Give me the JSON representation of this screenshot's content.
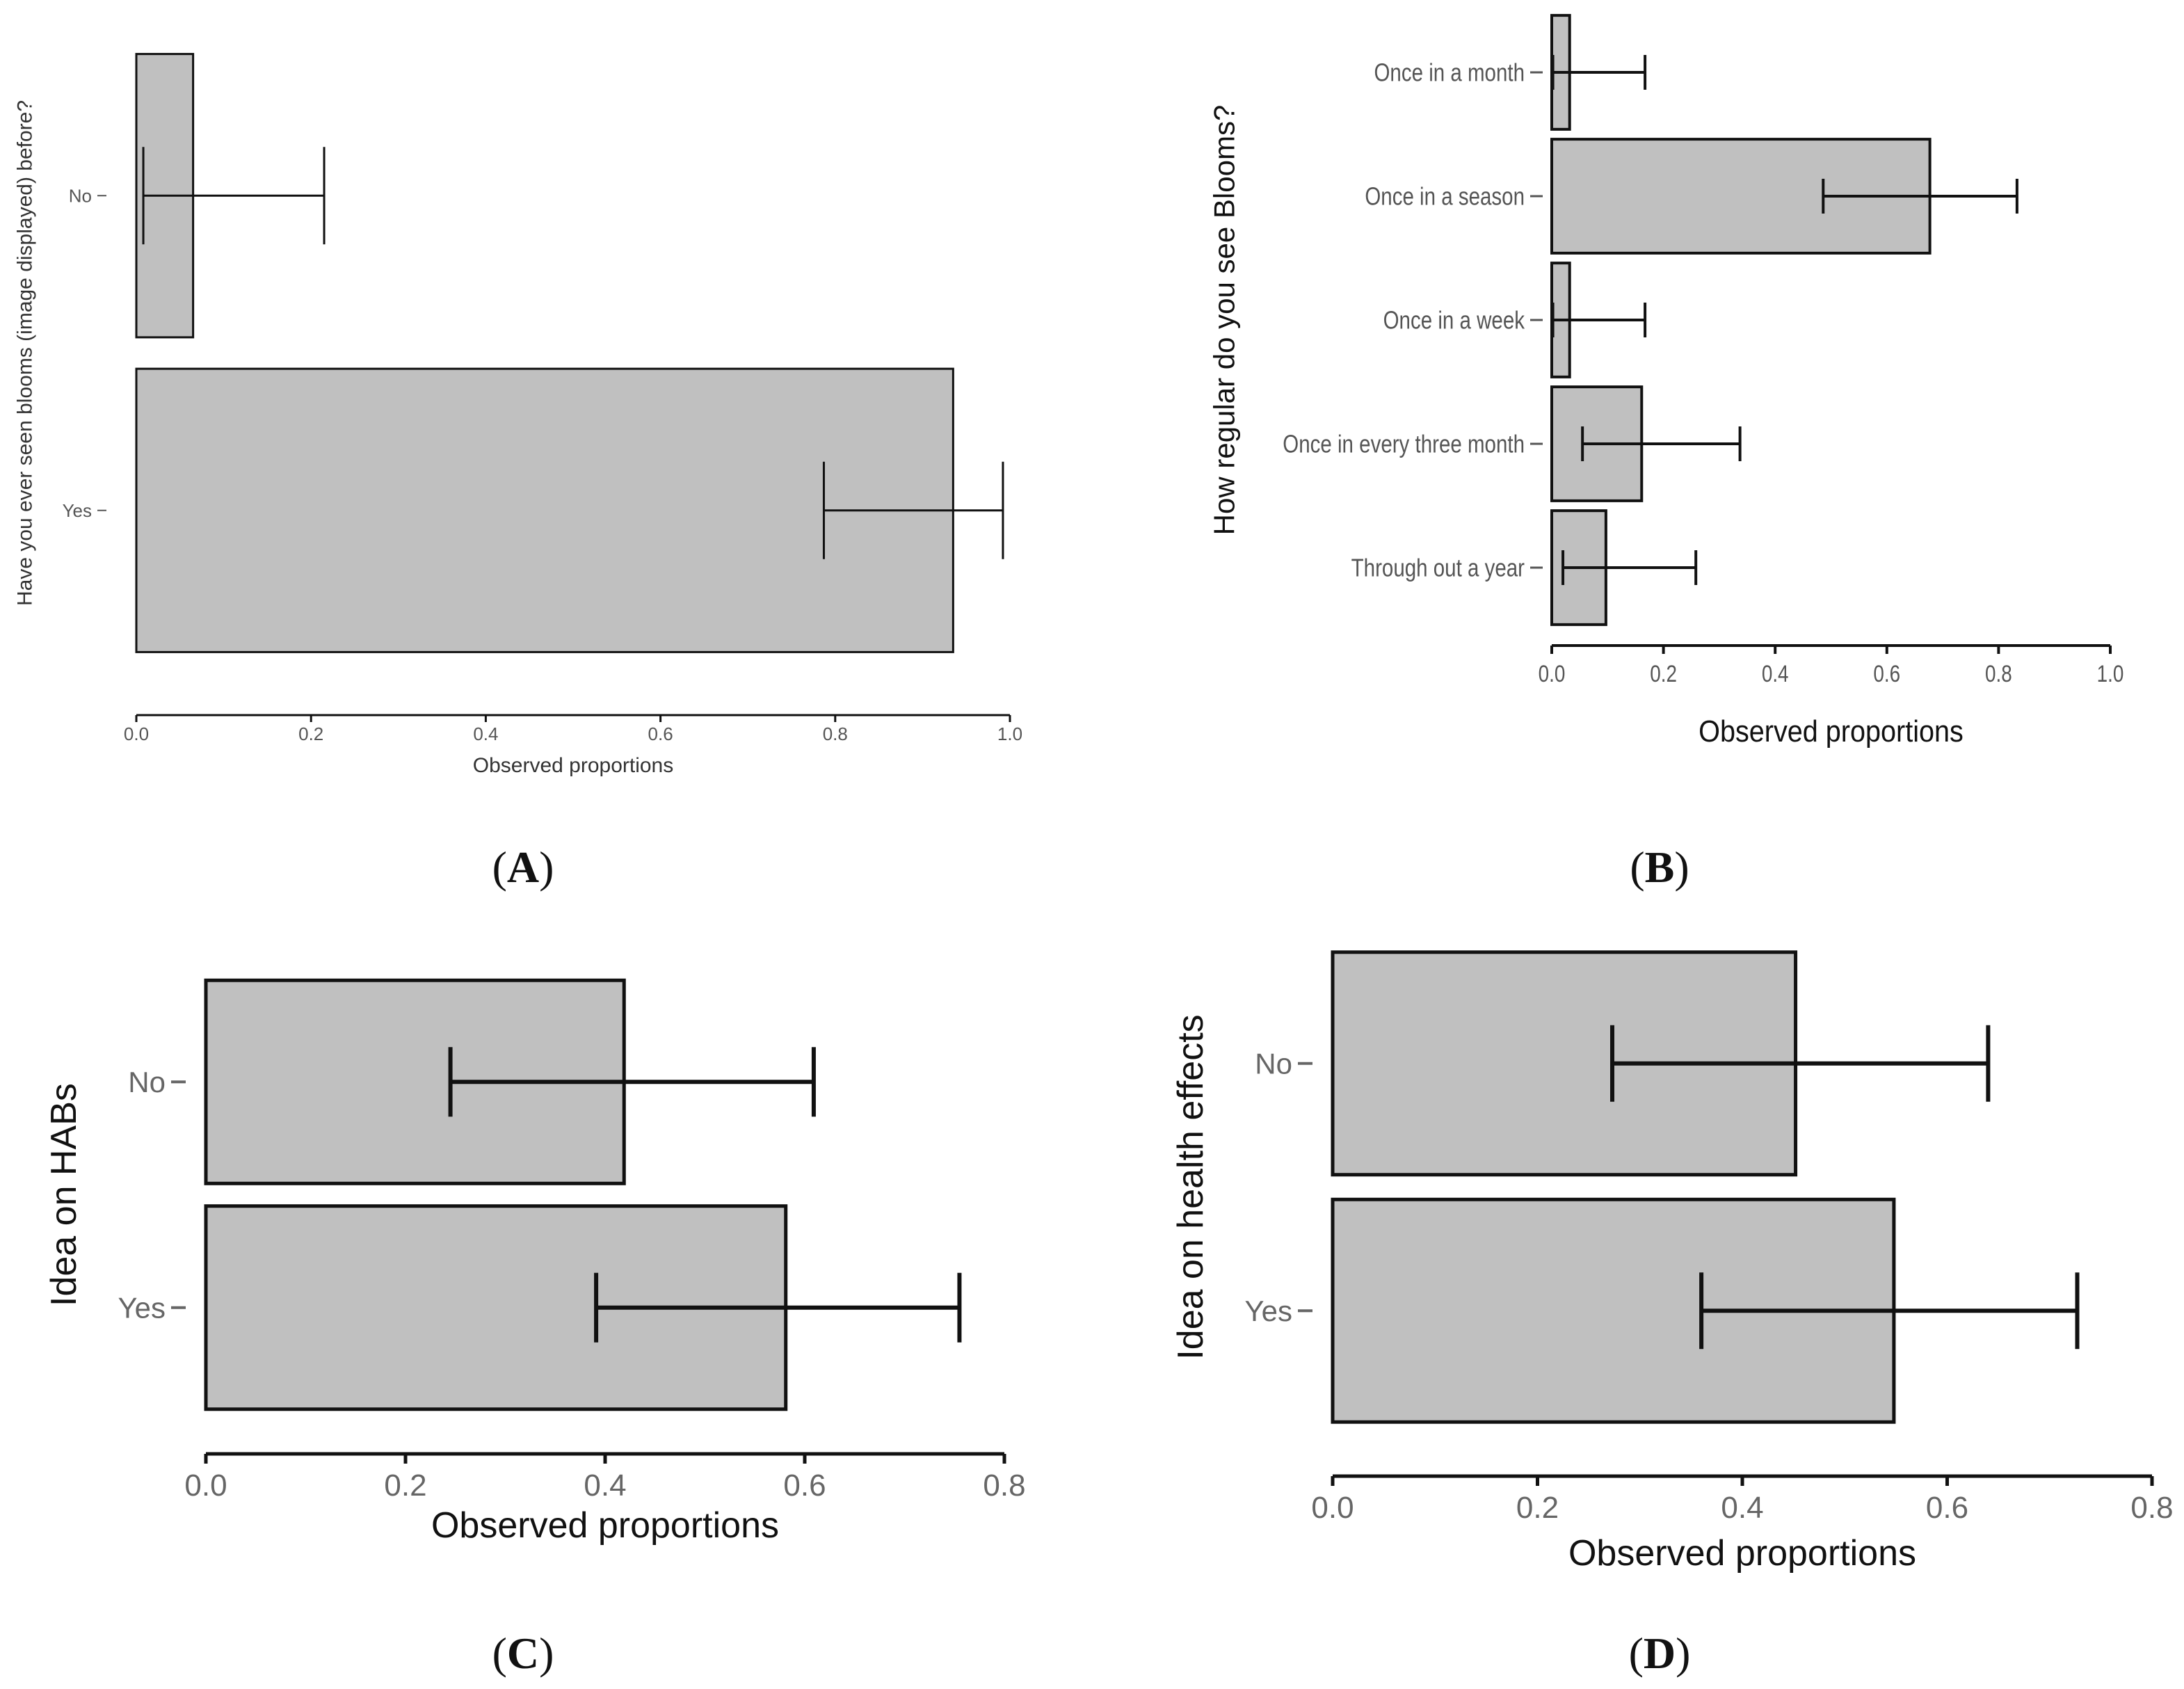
{
  "figure": {
    "panels": [
      {
        "id": "A",
        "label": "A"
      },
      {
        "id": "B",
        "label": "B"
      },
      {
        "id": "C",
        "label": "C"
      },
      {
        "id": "D",
        "label": "D"
      }
    ]
  },
  "colors": {
    "bar_fill": "#c0c0c0",
    "stroke": "#111111",
    "text": "#555555",
    "title_text": "#111111",
    "background": "#ffffff"
  },
  "chart_data": [
    {
      "id": "A",
      "type": "bar",
      "orientation": "horizontal",
      "ylabel": "Have you ever seen blooms (image displayed) before?",
      "xlabel": "Observed proportions",
      "xlim": [
        0,
        1.0
      ],
      "xticks": [
        0.0,
        0.2,
        0.4,
        0.6,
        0.8,
        1.0
      ],
      "xtick_labels": [
        "0.0",
        "0.2",
        "0.4",
        "0.6",
        "0.8",
        "1.0"
      ],
      "categories": [
        "No",
        "Yes"
      ],
      "values": [
        0.065,
        0.935
      ],
      "ci_low": [
        0.008,
        0.787
      ],
      "ci_high": [
        0.215,
        0.992
      ]
    },
    {
      "id": "B",
      "type": "bar",
      "orientation": "horizontal",
      "ylabel": "How regular do you see Blooms?",
      "xlabel": "Observed proportions",
      "xlim": [
        0,
        1.0
      ],
      "xticks": [
        0.0,
        0.2,
        0.4,
        0.6,
        0.8,
        1.0
      ],
      "xtick_labels": [
        "0.0",
        "0.2",
        "0.4",
        "0.6",
        "0.8",
        "1.0"
      ],
      "categories": [
        "Once in a month",
        "Once in a season",
        "Once in a week",
        "Once in every three month",
        "Through out a year"
      ],
      "values": [
        0.032,
        0.677,
        0.032,
        0.161,
        0.097
      ],
      "ci_low": [
        0.002,
        0.486,
        0.002,
        0.055,
        0.02
      ],
      "ci_high": [
        0.167,
        0.833,
        0.167,
        0.337,
        0.258
      ]
    },
    {
      "id": "C",
      "type": "bar",
      "orientation": "horizontal",
      "ylabel": "Idea on HABs",
      "xlabel": "Observed proportions",
      "xlim": [
        0,
        0.8
      ],
      "xticks": [
        0.0,
        0.2,
        0.4,
        0.6,
        0.8
      ],
      "xtick_labels": [
        "0.0",
        "0.2",
        "0.4",
        "0.6",
        "0.8"
      ],
      "categories": [
        "No",
        "Yes"
      ],
      "values": [
        0.419,
        0.581
      ],
      "ci_low": [
        0.245,
        0.391
      ],
      "ci_high": [
        0.609,
        0.755
      ]
    },
    {
      "id": "D",
      "type": "bar",
      "orientation": "horizontal",
      "ylabel": "Idea on health effects",
      "xlabel": "Observed proportions",
      "xlim": [
        0,
        0.8
      ],
      "xticks": [
        0.0,
        0.2,
        0.4,
        0.6,
        0.8
      ],
      "xtick_labels": [
        "0.0",
        "0.2",
        "0.4",
        "0.6",
        "0.8"
      ],
      "categories": [
        "No",
        "Yes"
      ],
      "values": [
        0.452,
        0.548
      ],
      "ci_low": [
        0.273,
        0.36
      ],
      "ci_high": [
        0.64,
        0.727
      ]
    }
  ]
}
